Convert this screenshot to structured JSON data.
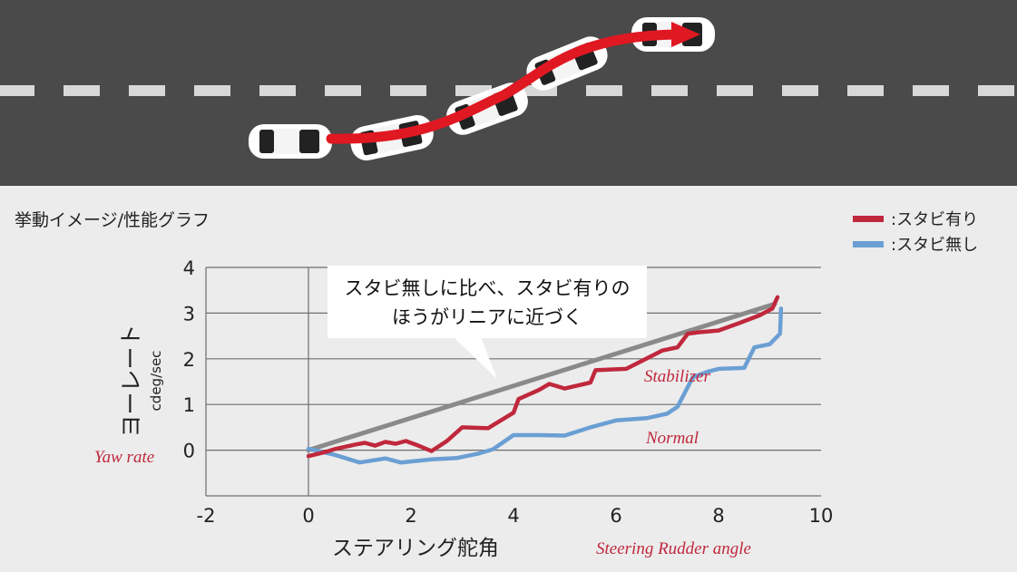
{
  "section_title": "挙動イメージ/性能グラフ",
  "legend": [
    {
      "label": ":スタビ有り",
      "color": "#c0283c"
    },
    {
      "label": ":スタビ無し",
      "color": "#6b9fd4"
    }
  ],
  "callout": {
    "line1": "スタビ無しに比べ、スタビ有りの",
    "line2": "ほうがリニアに近づく"
  },
  "colors": {
    "road": "#4a4a4a",
    "lane_marking": "#d8d8d8",
    "trajectory_arrow": "#e01822",
    "reference_line": "#8a8a8a",
    "annotation_red": "#c0283c",
    "car_body": "#ffffff"
  },
  "chart_data": {
    "type": "line",
    "xlabel": "ステアリング舵角",
    "xlabel_en": "Steering Rudder angle",
    "ylabel": "ヨーレート",
    "ylabel_unit": "cdeg/sec",
    "ylabel_en": "Yaw rate",
    "xlim": [
      -2,
      10
    ],
    "ylim": [
      -1,
      4
    ],
    "x_ticks": [
      "-2",
      "0",
      "2",
      "4",
      "6",
      "8",
      "10"
    ],
    "y_ticks": [
      "0",
      "1",
      "2",
      "3",
      "4"
    ],
    "grid": "horizontal",
    "legend_position": "top-right",
    "series": [
      {
        "name": ":スタビ有り",
        "annotation": "Stabilizer",
        "color": "#c0283c",
        "points": [
          [
            0,
            -0.13
          ],
          [
            0.3,
            -0.05
          ],
          [
            0.5,
            0.02
          ],
          [
            0.7,
            0.07
          ],
          [
            0.9,
            0.12
          ],
          [
            1.1,
            0.16
          ],
          [
            1.3,
            0.1
          ],
          [
            1.5,
            0.18
          ],
          [
            1.7,
            0.14
          ],
          [
            1.9,
            0.2
          ],
          [
            2.1,
            0.12
          ],
          [
            2.4,
            -0.02
          ],
          [
            2.7,
            0.2
          ],
          [
            3.0,
            0.5
          ],
          [
            3.5,
            0.48
          ],
          [
            4.0,
            0.82
          ],
          [
            4.1,
            1.12
          ],
          [
            4.5,
            1.32
          ],
          [
            4.7,
            1.45
          ],
          [
            5.0,
            1.35
          ],
          [
            5.5,
            1.48
          ],
          [
            5.6,
            1.75
          ],
          [
            6.0,
            1.77
          ],
          [
            6.2,
            1.78
          ],
          [
            6.5,
            1.95
          ],
          [
            6.9,
            2.18
          ],
          [
            7.2,
            2.25
          ],
          [
            7.4,
            2.55
          ],
          [
            7.6,
            2.58
          ],
          [
            8.0,
            2.62
          ],
          [
            8.4,
            2.78
          ],
          [
            8.8,
            2.95
          ],
          [
            9.05,
            3.1
          ],
          [
            9.15,
            3.35
          ]
        ]
      },
      {
        "name": ":スタビ無し",
        "annotation": "Normal",
        "color": "#6b9fd4",
        "points": [
          [
            0,
            0.03
          ],
          [
            0.5,
            -0.1
          ],
          [
            1.0,
            -0.27
          ],
          [
            1.5,
            -0.18
          ],
          [
            1.8,
            -0.27
          ],
          [
            2.4,
            -0.2
          ],
          [
            2.9,
            -0.17
          ],
          [
            3.3,
            -0.08
          ],
          [
            3.6,
            0.02
          ],
          [
            4.0,
            0.33
          ],
          [
            4.5,
            0.33
          ],
          [
            5.0,
            0.32
          ],
          [
            5.5,
            0.5
          ],
          [
            6.0,
            0.65
          ],
          [
            6.6,
            0.7
          ],
          [
            7.0,
            0.8
          ],
          [
            7.2,
            0.95
          ],
          [
            7.5,
            1.6
          ],
          [
            7.8,
            1.72
          ],
          [
            8.0,
            1.78
          ],
          [
            8.5,
            1.8
          ],
          [
            8.7,
            2.25
          ],
          [
            9.0,
            2.32
          ],
          [
            9.2,
            2.55
          ],
          [
            9.22,
            3.1
          ]
        ]
      },
      {
        "name": "",
        "color": "#8a8a8a",
        "points": [
          [
            0,
            0
          ],
          [
            9.1,
            3.2
          ]
        ]
      }
    ]
  }
}
